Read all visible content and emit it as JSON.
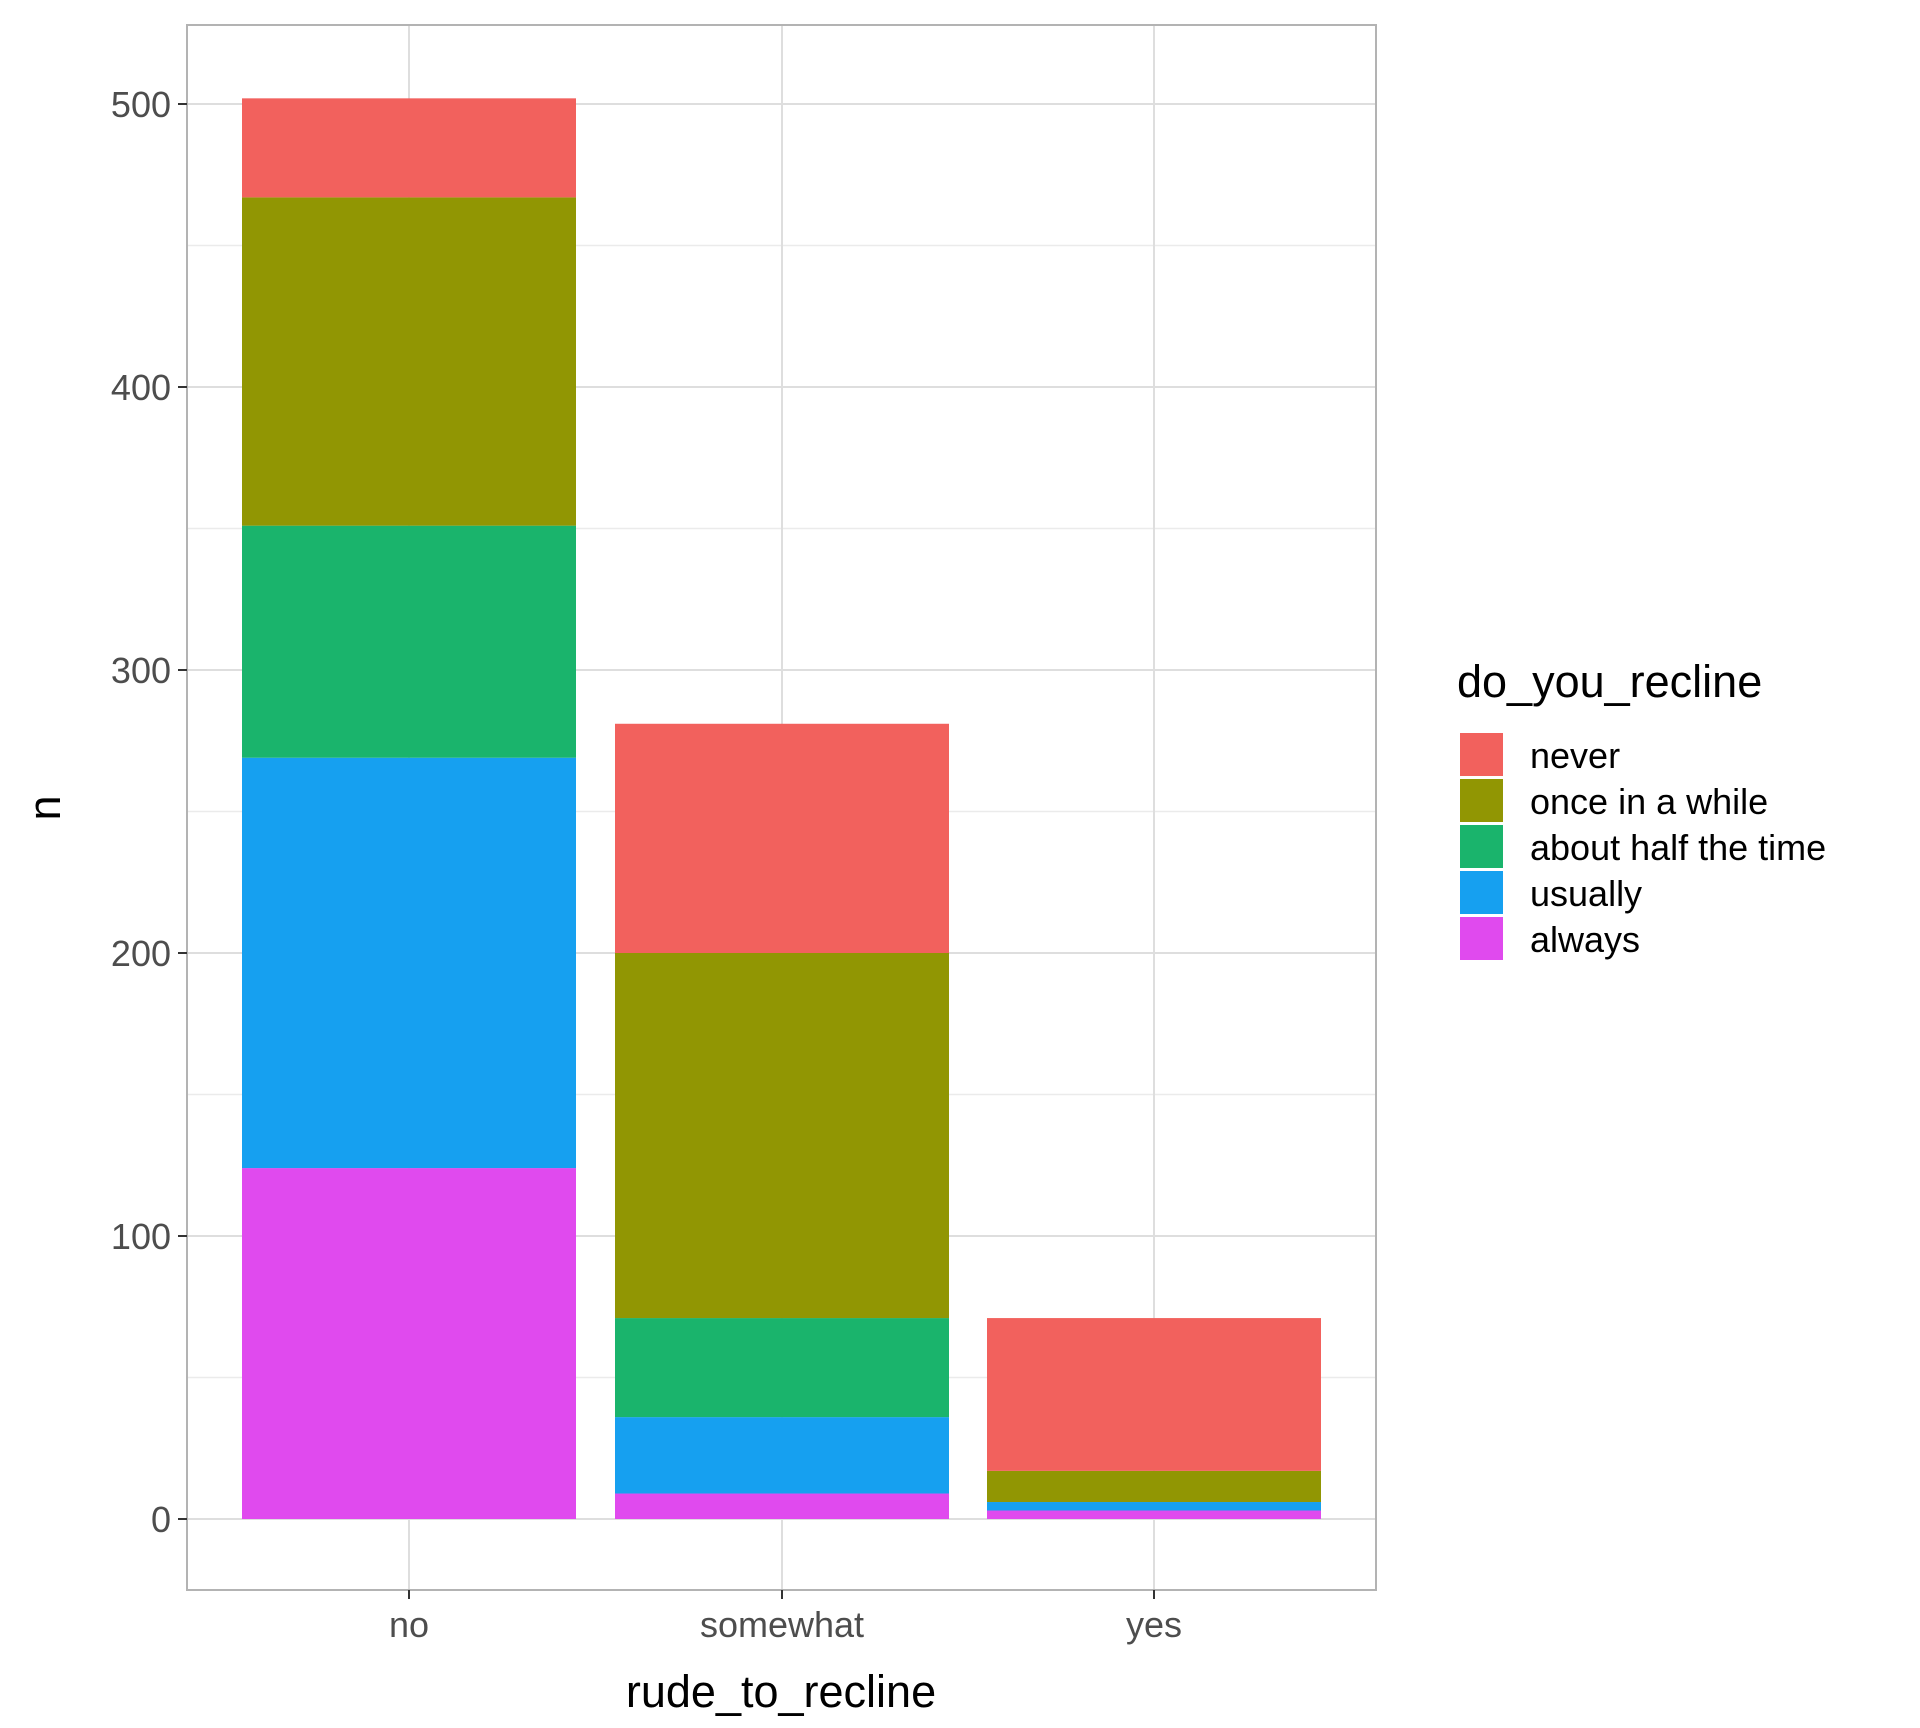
{
  "chart_data": {
    "type": "bar",
    "stacked": true,
    "xlabel": "rude_to_recline",
    "ylabel": "n",
    "categories": [
      "no",
      "somewhat",
      "yes"
    ],
    "ylim": [
      -25,
      527
    ],
    "yticks": [
      0,
      100,
      200,
      300,
      400,
      500
    ],
    "grid": true,
    "legend": {
      "title": "do_you_recline",
      "placement": "right"
    },
    "series": [
      {
        "name": "never",
        "color": "#F2615D",
        "values": [
          35,
          81,
          54
        ]
      },
      {
        "name": "once in a while",
        "color": "#919603",
        "values": [
          116,
          129,
          11
        ]
      },
      {
        "name": "about half the time",
        "color": "#1AB46C",
        "values": [
          82,
          35,
          0
        ]
      },
      {
        "name": "usually",
        "color": "#16A0F0",
        "values": [
          145,
          27,
          3
        ]
      },
      {
        "name": "always",
        "color": "#E04AEE",
        "values": [
          124,
          9,
          3
        ]
      }
    ]
  }
}
